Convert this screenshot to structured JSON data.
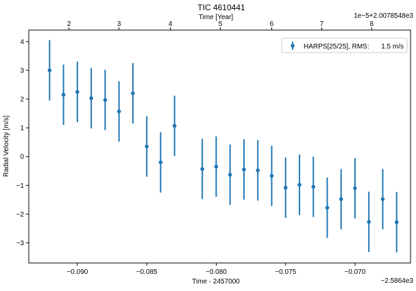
{
  "chart_data": {
    "type": "scatter",
    "title": "TIC 4610441",
    "xlabel": "Time - 2457000",
    "ylabel": "Radial Velocity [m/s]",
    "top_xlabel": "Time [Year]",
    "bottom_offset_text": "−2.5864e3",
    "top_offset_text": "1e−5+2.0078548e3",
    "xlim": [
      -0.0935,
      -0.066
    ],
    "ylim": [
      -3.7,
      4.4
    ],
    "x_ticks": [
      -0.09,
      -0.085,
      -0.08,
      -0.075,
      -0.07
    ],
    "x_tick_labels": [
      "−0.090",
      "−0.085",
      "−0.080",
      "−0.075",
      "−0.070"
    ],
    "y_ticks": [
      -3,
      -2,
      -1,
      0,
      1,
      2,
      3,
      4
    ],
    "y_tick_labels": [
      "−3",
      "−2",
      "−1",
      "0",
      "1",
      "2",
      "3",
      "4"
    ],
    "top_ticks": [
      -0.0906,
      -0.087,
      -0.0833,
      -0.0797,
      -0.076,
      -0.0724,
      -0.0688
    ],
    "top_tick_labels": [
      "2",
      "3",
      "4",
      "5",
      "6",
      "7",
      "8"
    ],
    "grid": false,
    "legend_position": "top-right",
    "color": "#1f77b4",
    "series": [
      {
        "name": "HARPS[25/25], RMS:",
        "rms": "1.5 m/s",
        "x": [
          -0.092,
          -0.091,
          -0.09,
          -0.089,
          -0.088,
          -0.087,
          -0.086,
          -0.085,
          -0.084,
          -0.083,
          -0.081,
          -0.08,
          -0.079,
          -0.078,
          -0.077,
          -0.076,
          -0.075,
          -0.074,
          -0.073,
          -0.072,
          -0.071,
          -0.07,
          -0.069,
          -0.068,
          -0.067
        ],
        "y": [
          3.0,
          2.15,
          2.25,
          2.03,
          1.97,
          1.57,
          2.2,
          0.35,
          -0.2,
          1.07,
          -0.43,
          -0.35,
          -0.63,
          -0.45,
          -0.48,
          -0.67,
          -1.08,
          -0.98,
          -1.05,
          -1.78,
          -1.48,
          -1.1,
          -2.27,
          -1.48,
          -2.28
        ],
        "yerr": [
          1.05,
          1.05,
          1.05,
          1.05,
          1.05,
          1.05,
          1.05,
          1.05,
          1.05,
          1.05,
          1.05,
          1.05,
          1.05,
          1.05,
          1.05,
          1.05,
          1.05,
          1.05,
          1.05,
          1.05,
          1.05,
          1.05,
          1.05,
          1.05,
          1.05
        ]
      }
    ]
  }
}
